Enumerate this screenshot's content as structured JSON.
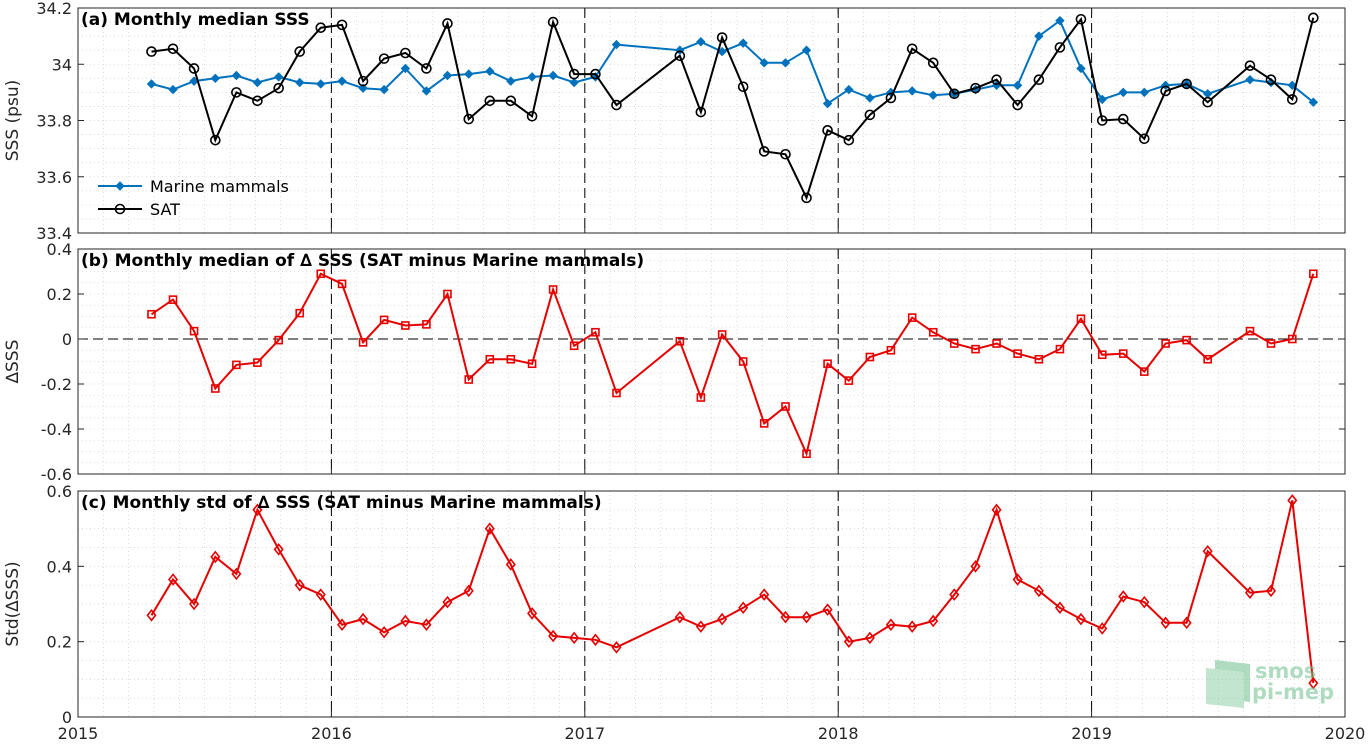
{
  "colors": {
    "marine": "#0072BD",
    "sat": "#000000",
    "delta": "#E60000",
    "grid": "#d2d2d2",
    "logo": "#6fbf8f"
  },
  "x_axis": {
    "range": [
      2015,
      2020
    ],
    "ticks": [
      "2015",
      "2016",
      "2017",
      "2018",
      "2019",
      "2020"
    ],
    "year_lines": [
      2016,
      2017,
      2018,
      2019
    ]
  },
  "logo": {
    "line1": "smos",
    "line2": "pi-mep"
  },
  "chart_data": [
    {
      "type": "line",
      "title": "(a) Monthly median SSS",
      "ylabel": "SSS (psu)",
      "ylim": [
        33.4,
        34.2
      ],
      "yticks": [
        "33.4",
        "33.6",
        "33.8",
        "34",
        "34.2"
      ],
      "grid": true,
      "legend_position": "bottom-left",
      "series": [
        {
          "name": "Marine mammals",
          "color": "#0072BD",
          "marker": "diamond",
          "x": [
            2015.29,
            2015.375,
            2015.458,
            2015.542,
            2015.625,
            2015.708,
            2015.792,
            2015.875,
            2015.958,
            2016.042,
            2016.125,
            2016.208,
            2016.292,
            2016.375,
            2016.458,
            2016.542,
            2016.625,
            2016.708,
            2016.792,
            2016.875,
            2016.958,
            2017.042,
            2017.125,
            2017.375,
            2017.458,
            2017.542,
            2017.625,
            2017.708,
            2017.792,
            2017.875,
            2017.958,
            2018.042,
            2018.125,
            2018.208,
            2018.292,
            2018.375,
            2018.458,
            2018.542,
            2018.625,
            2018.708,
            2018.792,
            2018.875,
            2018.958,
            2019.042,
            2019.125,
            2019.208,
            2019.292,
            2019.375,
            2019.458,
            2019.625,
            2019.708,
            2019.792,
            2019.875
          ],
          "values": [
            33.93,
            33.91,
            33.94,
            33.95,
            33.96,
            33.935,
            33.955,
            33.935,
            33.93,
            33.94,
            33.915,
            33.91,
            33.985,
            33.905,
            33.96,
            33.965,
            33.975,
            33.94,
            33.955,
            33.96,
            33.935,
            33.955,
            34.07,
            34.05,
            34.08,
            34.045,
            34.075,
            34.005,
            34.005,
            34.05,
            33.86,
            33.91,
            33.88,
            33.9,
            33.905,
            33.89,
            33.895,
            33.91,
            33.925,
            33.925,
            34.1,
            34.155,
            33.985,
            33.875,
            33.9,
            33.9,
            33.925,
            33.93,
            33.895,
            33.945,
            33.935,
            33.925,
            33.865
          ]
        },
        {
          "name": "SAT",
          "color": "#000000",
          "marker": "circle",
          "x": [
            2015.29,
            2015.375,
            2015.458,
            2015.542,
            2015.625,
            2015.708,
            2015.792,
            2015.875,
            2015.958,
            2016.042,
            2016.125,
            2016.208,
            2016.292,
            2016.375,
            2016.458,
            2016.542,
            2016.625,
            2016.708,
            2016.792,
            2016.875,
            2016.958,
            2017.042,
            2017.125,
            2017.375,
            2017.458,
            2017.542,
            2017.625,
            2017.708,
            2017.792,
            2017.875,
            2017.958,
            2018.042,
            2018.125,
            2018.208,
            2018.292,
            2018.375,
            2018.458,
            2018.542,
            2018.625,
            2018.708,
            2018.792,
            2018.875,
            2018.958,
            2019.042,
            2019.125,
            2019.208,
            2019.292,
            2019.375,
            2019.458,
            2019.625,
            2019.708,
            2019.792,
            2019.875
          ],
          "values": [
            34.045,
            34.055,
            33.985,
            33.73,
            33.9,
            33.87,
            33.915,
            34.045,
            34.13,
            34.14,
            33.94,
            34.02,
            34.04,
            33.985,
            34.145,
            33.805,
            33.87,
            33.87,
            33.815,
            34.15,
            33.965,
            33.965,
            33.855,
            34.03,
            33.83,
            34.095,
            33.92,
            33.69,
            33.68,
            33.525,
            33.765,
            33.73,
            33.82,
            33.88,
            34.055,
            34.005,
            33.895,
            33.915,
            33.945,
            33.855,
            33.945,
            34.06,
            34.16,
            33.8,
            33.805,
            33.735,
            33.905,
            33.93,
            33.865,
            33.995,
            33.945,
            33.875,
            34.165
          ]
        }
      ]
    },
    {
      "type": "line",
      "title": "(b) Monthly median of ∆ SSS (SAT minus Marine mammals)",
      "ylabel": "∆SSS",
      "ylim": [
        -0.6,
        0.4
      ],
      "yticks": [
        "-0.6",
        "-0.4",
        "-0.2",
        "0",
        "0.2",
        "0.4"
      ],
      "zero_line": true,
      "grid": true,
      "series": [
        {
          "color": "#E60000",
          "marker": "square",
          "x": [
            2015.29,
            2015.375,
            2015.458,
            2015.542,
            2015.625,
            2015.708,
            2015.792,
            2015.875,
            2015.958,
            2016.042,
            2016.125,
            2016.208,
            2016.292,
            2016.375,
            2016.458,
            2016.542,
            2016.625,
            2016.708,
            2016.792,
            2016.875,
            2016.958,
            2017.042,
            2017.125,
            2017.375,
            2017.458,
            2017.542,
            2017.625,
            2017.708,
            2017.792,
            2017.875,
            2017.958,
            2018.042,
            2018.125,
            2018.208,
            2018.292,
            2018.375,
            2018.458,
            2018.542,
            2018.625,
            2018.708,
            2018.792,
            2018.875,
            2018.958,
            2019.042,
            2019.125,
            2019.208,
            2019.292,
            2019.375,
            2019.458,
            2019.625,
            2019.708,
            2019.792,
            2019.875
          ],
          "values": [
            0.11,
            0.175,
            0.035,
            -0.22,
            -0.115,
            -0.105,
            -0.005,
            0.115,
            0.29,
            0.245,
            -0.015,
            0.085,
            0.06,
            0.065,
            0.2,
            -0.18,
            -0.09,
            -0.09,
            -0.11,
            0.22,
            -0.03,
            0.03,
            -0.24,
            -0.01,
            -0.26,
            0.02,
            -0.1,
            -0.375,
            -0.3,
            -0.51,
            -0.11,
            -0.185,
            -0.08,
            -0.05,
            0.095,
            0.03,
            -0.02,
            -0.045,
            -0.02,
            -0.065,
            -0.09,
            -0.045,
            0.09,
            -0.07,
            -0.065,
            -0.145,
            -0.02,
            -0.005,
            -0.09,
            0.035,
            -0.02,
            0.0,
            0.29
          ]
        }
      ]
    },
    {
      "type": "line",
      "title": "(c) Monthly std of ∆ SSS (SAT minus Marine mammals)",
      "ylabel": "Std(∆SSS)",
      "ylim": [
        0,
        0.6
      ],
      "yticks": [
        "0",
        "0.2",
        "0.4",
        "0.6"
      ],
      "grid": true,
      "series": [
        {
          "color": "#E60000",
          "marker": "diamond-open",
          "x": [
            2015.29,
            2015.375,
            2015.458,
            2015.542,
            2015.625,
            2015.708,
            2015.792,
            2015.875,
            2015.958,
            2016.042,
            2016.125,
            2016.208,
            2016.292,
            2016.375,
            2016.458,
            2016.542,
            2016.625,
            2016.708,
            2016.792,
            2016.875,
            2016.958,
            2017.042,
            2017.125,
            2017.375,
            2017.458,
            2017.542,
            2017.625,
            2017.708,
            2017.792,
            2017.875,
            2017.958,
            2018.042,
            2018.125,
            2018.208,
            2018.292,
            2018.375,
            2018.458,
            2018.542,
            2018.625,
            2018.708,
            2018.792,
            2018.875,
            2018.958,
            2019.042,
            2019.125,
            2019.208,
            2019.292,
            2019.375,
            2019.458,
            2019.625,
            2019.708,
            2019.792,
            2019.875
          ],
          "values": [
            0.27,
            0.365,
            0.3,
            0.425,
            0.38,
            0.55,
            0.445,
            0.35,
            0.325,
            0.245,
            0.26,
            0.225,
            0.255,
            0.245,
            0.305,
            0.335,
            0.5,
            0.405,
            0.275,
            0.215,
            0.21,
            0.205,
            0.185,
            0.265,
            0.24,
            0.26,
            0.29,
            0.325,
            0.265,
            0.265,
            0.285,
            0.2,
            0.21,
            0.245,
            0.24,
            0.255,
            0.325,
            0.4,
            0.55,
            0.365,
            0.335,
            0.29,
            0.26,
            0.235,
            0.32,
            0.305,
            0.25,
            0.25,
            0.44,
            0.33,
            0.335,
            0.575,
            0.09
          ]
        }
      ]
    }
  ]
}
